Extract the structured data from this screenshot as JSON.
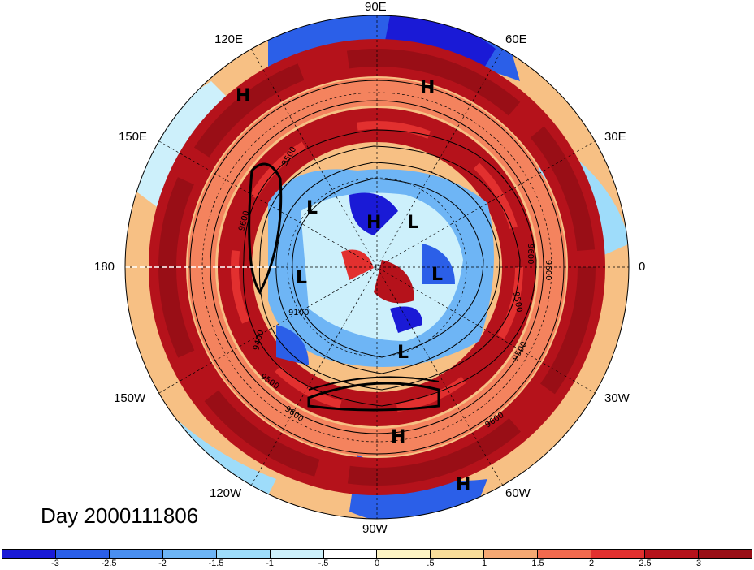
{
  "title": "Day 2000111806",
  "longitude_labels": [
    "90E",
    "60E",
    "30E",
    "0",
    "30W",
    "60W",
    "90W",
    "120W",
    "150W",
    "180",
    "150E",
    "120E"
  ],
  "centers": [
    "H",
    "H",
    "L",
    "H",
    "L",
    "L",
    "L",
    "L",
    "H",
    "H"
  ],
  "contour_labels": [
    "9600",
    "9100",
    "9400",
    "9500",
    "9600",
    "9600",
    "9500",
    "9500",
    "9600",
    "9500",
    "9600"
  ],
  "colorbar": {
    "labels": [
      "-3",
      "-2.5",
      "-2",
      "-1.5",
      "-1",
      "-.5",
      "0",
      ".5",
      "1",
      "1.5",
      "2",
      "2.5",
      "3"
    ],
    "colors": [
      "#1a1ad6",
      "#2b5fe8",
      "#4a8ff0",
      "#6eb5f5",
      "#9edcfa",
      "#cdf0fb",
      "#ffffff",
      "#fdf3c4",
      "#f9dd9a",
      "#f5a873",
      "#f26a4e",
      "#e2302f",
      "#b5121b",
      "#990e16"
    ]
  },
  "colors": {
    "warm_band": "#b5121b",
    "cool_core": "#4a8ff0",
    "coast": "#222222",
    "contour": "#000000"
  }
}
